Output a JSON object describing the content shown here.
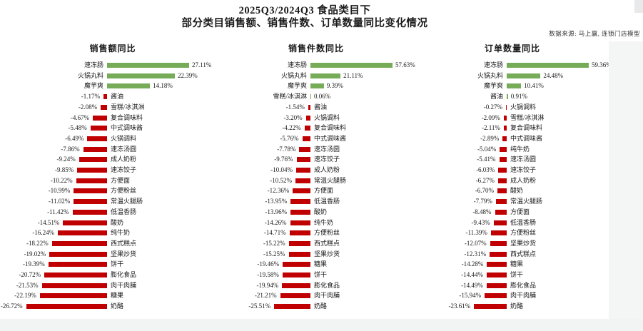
{
  "title": {
    "line1": "2025Q3/2024Q3 食品类目下",
    "line2": "部分类目销售额、销售件数、订单数量同比变化情况"
  },
  "source_note": "数据来源: 马上赢, 连锁门店模型",
  "colors": {
    "positive": "#76ac58",
    "negative": "#c00000",
    "text": "#1a1a1a"
  },
  "chart_data": [
    {
      "type": "bar",
      "orientation": "horizontal",
      "title": "销售额同比",
      "unit": "%",
      "value_format": "two-decimals-percent",
      "grid": false,
      "legend": "none",
      "positive_color": "#76ac58",
      "negative_color": "#c00000",
      "categories": [
        "速冻肠",
        "火锅丸料",
        "魔芋爽",
        "酱油",
        "雪糕/冰淇淋",
        "复合调味料",
        "中式调味酱",
        "火锅调料",
        "速冻汤圆",
        "成人奶粉",
        "速冻饺子",
        "方便面",
        "方便粉丝",
        "常温火腿肠",
        "低温香肠",
        "酸奶",
        "纯牛奶",
        "西式糕点",
        "坚果炒货",
        "饼干",
        "膨化食品",
        "肉干肉脯",
        "糖果",
        "奶酪"
      ],
      "values": [
        27.11,
        22.39,
        14.18,
        -1.17,
        -2.08,
        -4.67,
        -5.48,
        -6.49,
        -7.86,
        -9.24,
        -9.85,
        -10.22,
        -10.99,
        -11.02,
        -11.42,
        -14.51,
        -16.24,
        -18.22,
        -19.02,
        -19.39,
        -20.72,
        -21.53,
        -22.19,
        -26.72
      ]
    },
    {
      "type": "bar",
      "orientation": "horizontal",
      "title": "销售件数同比",
      "unit": "%",
      "value_format": "two-decimals-percent",
      "grid": false,
      "legend": "none",
      "positive_color": "#76ac58",
      "negative_color": "#c00000",
      "categories": [
        "速冻肠",
        "火锅丸料",
        "魔芋爽",
        "雪糕/冰淇淋",
        "酱油",
        "火锅调料",
        "复合调味料",
        "中式调味酱",
        "速冻汤圆",
        "速冻饺子",
        "成人奶粉",
        "常温火腿肠",
        "方便面",
        "低温香肠",
        "酸奶",
        "纯牛奶",
        "方便粉丝",
        "西式糕点",
        "坚果炒货",
        "糖果",
        "饼干",
        "膨化食品",
        "肉干肉脯",
        "奶酪"
      ],
      "values": [
        57.63,
        21.11,
        9.39,
        0.06,
        -1.54,
        -3.2,
        -4.22,
        -5.76,
        -7.78,
        -9.76,
        -10.04,
        -10.52,
        -12.36,
        -13.95,
        -13.96,
        -14.26,
        -14.71,
        -15.22,
        -15.25,
        -19.46,
        -19.58,
        -19.94,
        -21.21,
        -25.51
      ]
    },
    {
      "type": "bar",
      "orientation": "horizontal",
      "title": "订单数量同比",
      "unit": "%",
      "value_format": "two-decimals-percent",
      "grid": false,
      "legend": "none",
      "positive_color": "#76ac58",
      "negative_color": "#c00000",
      "categories": [
        "速冻肠",
        "火锅丸料",
        "魔芋爽",
        "酱油",
        "火锅调料",
        "雪糕/冰淇淋",
        "复合调味料",
        "中式调味酱",
        "纯牛奶",
        "速冻汤圆",
        "速冻饺子",
        "成人奶粉",
        "酸奶",
        "常温火腿肠",
        "方便面",
        "低温香肠",
        "方便粉丝",
        "坚果炒货",
        "西式糕点",
        "糖果",
        "饼干",
        "膨化食品",
        "肉干肉脯",
        "奶酪"
      ],
      "values": [
        59.36,
        24.48,
        10.41,
        0.91,
        -0.27,
        -2.09,
        -2.11,
        -2.89,
        -5.04,
        -5.41,
        -6.03,
        -6.27,
        -6.7,
        -7.79,
        -8.48,
        -9.43,
        -11.39,
        -12.07,
        -12.31,
        -14.28,
        -14.44,
        -14.49,
        -15.94,
        -23.61
      ]
    }
  ]
}
